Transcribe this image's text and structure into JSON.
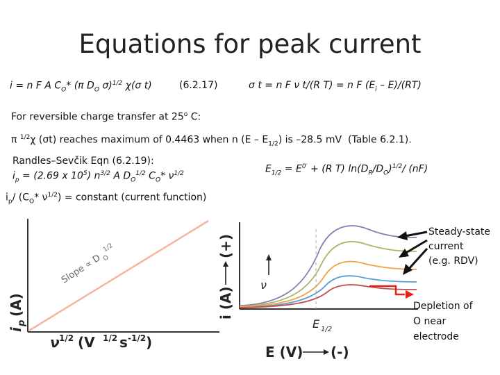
{
  "slide": {
    "title": "Equations for peak current",
    "eq_617": "i = n F A CO* (π DO σ)1/2 χ(σ t)",
    "eq_617_label": "(6.2.17)",
    "sigma_eq": "σ t = n F ν t/(R T) = n F (Ei – E)/(RT)",
    "reversible_text": "For reversible charge transfer at 25° C:",
    "max_text": "π 1/2 χ (σt) reaches maximum of 0.4463 when n (E – E1/2) is –28.5 mV (Table 6.2.1).",
    "randles_title": "Randles–Sevčik Eqn (6.2.19):",
    "randles_eq": "ip = (2.69 x 105) n3/2 A DO1/2 CO* ν1/2",
    "e_half_eq": "E1/2 = E0′ + (R T) ln(DR/DO)1/2/ (nF)",
    "current_function": "ip / (CO* ν1/2) = constant (current function)"
  },
  "left_plot": {
    "ylabel_main": "i",
    "ylabel_sub": "p",
    "ylabel_unit": "(A)",
    "xlabel_main": "ν",
    "xlabel_exp": "1/2",
    "xlabel_unit": "(V",
    "xlabel_unit_exp": "1/2",
    "xlabel_s": "s",
    "xlabel_s_exp": "-1/2",
    "xlabel_close": ")",
    "slope_text": "Slope ∝ D",
    "slope_sub": "O",
    "slope_exp": "1/2",
    "line_color": "#f5b4a0"
  },
  "right_plot": {
    "ylabel": "i (A)",
    "yplus": "(+)",
    "xlabel": "E (V)",
    "xminus": "(-)",
    "nu_label": "ν",
    "e_half_label": "E",
    "e_half_sub": "1/2",
    "steady_state_label": "Steady-state current (e.g. RDV)",
    "steady_lines": [
      "Steady-state",
      "current",
      "(e.g. RDV)"
    ],
    "depletion_lines": [
      "Depletion of",
      "O near",
      "electrode"
    ],
    "curve_colors": [
      "#8a7fb5",
      "#aab56a",
      "#f2a04a",
      "#5b9bd5",
      "#c0504d"
    ],
    "depletion_color": "#e8201c"
  }
}
